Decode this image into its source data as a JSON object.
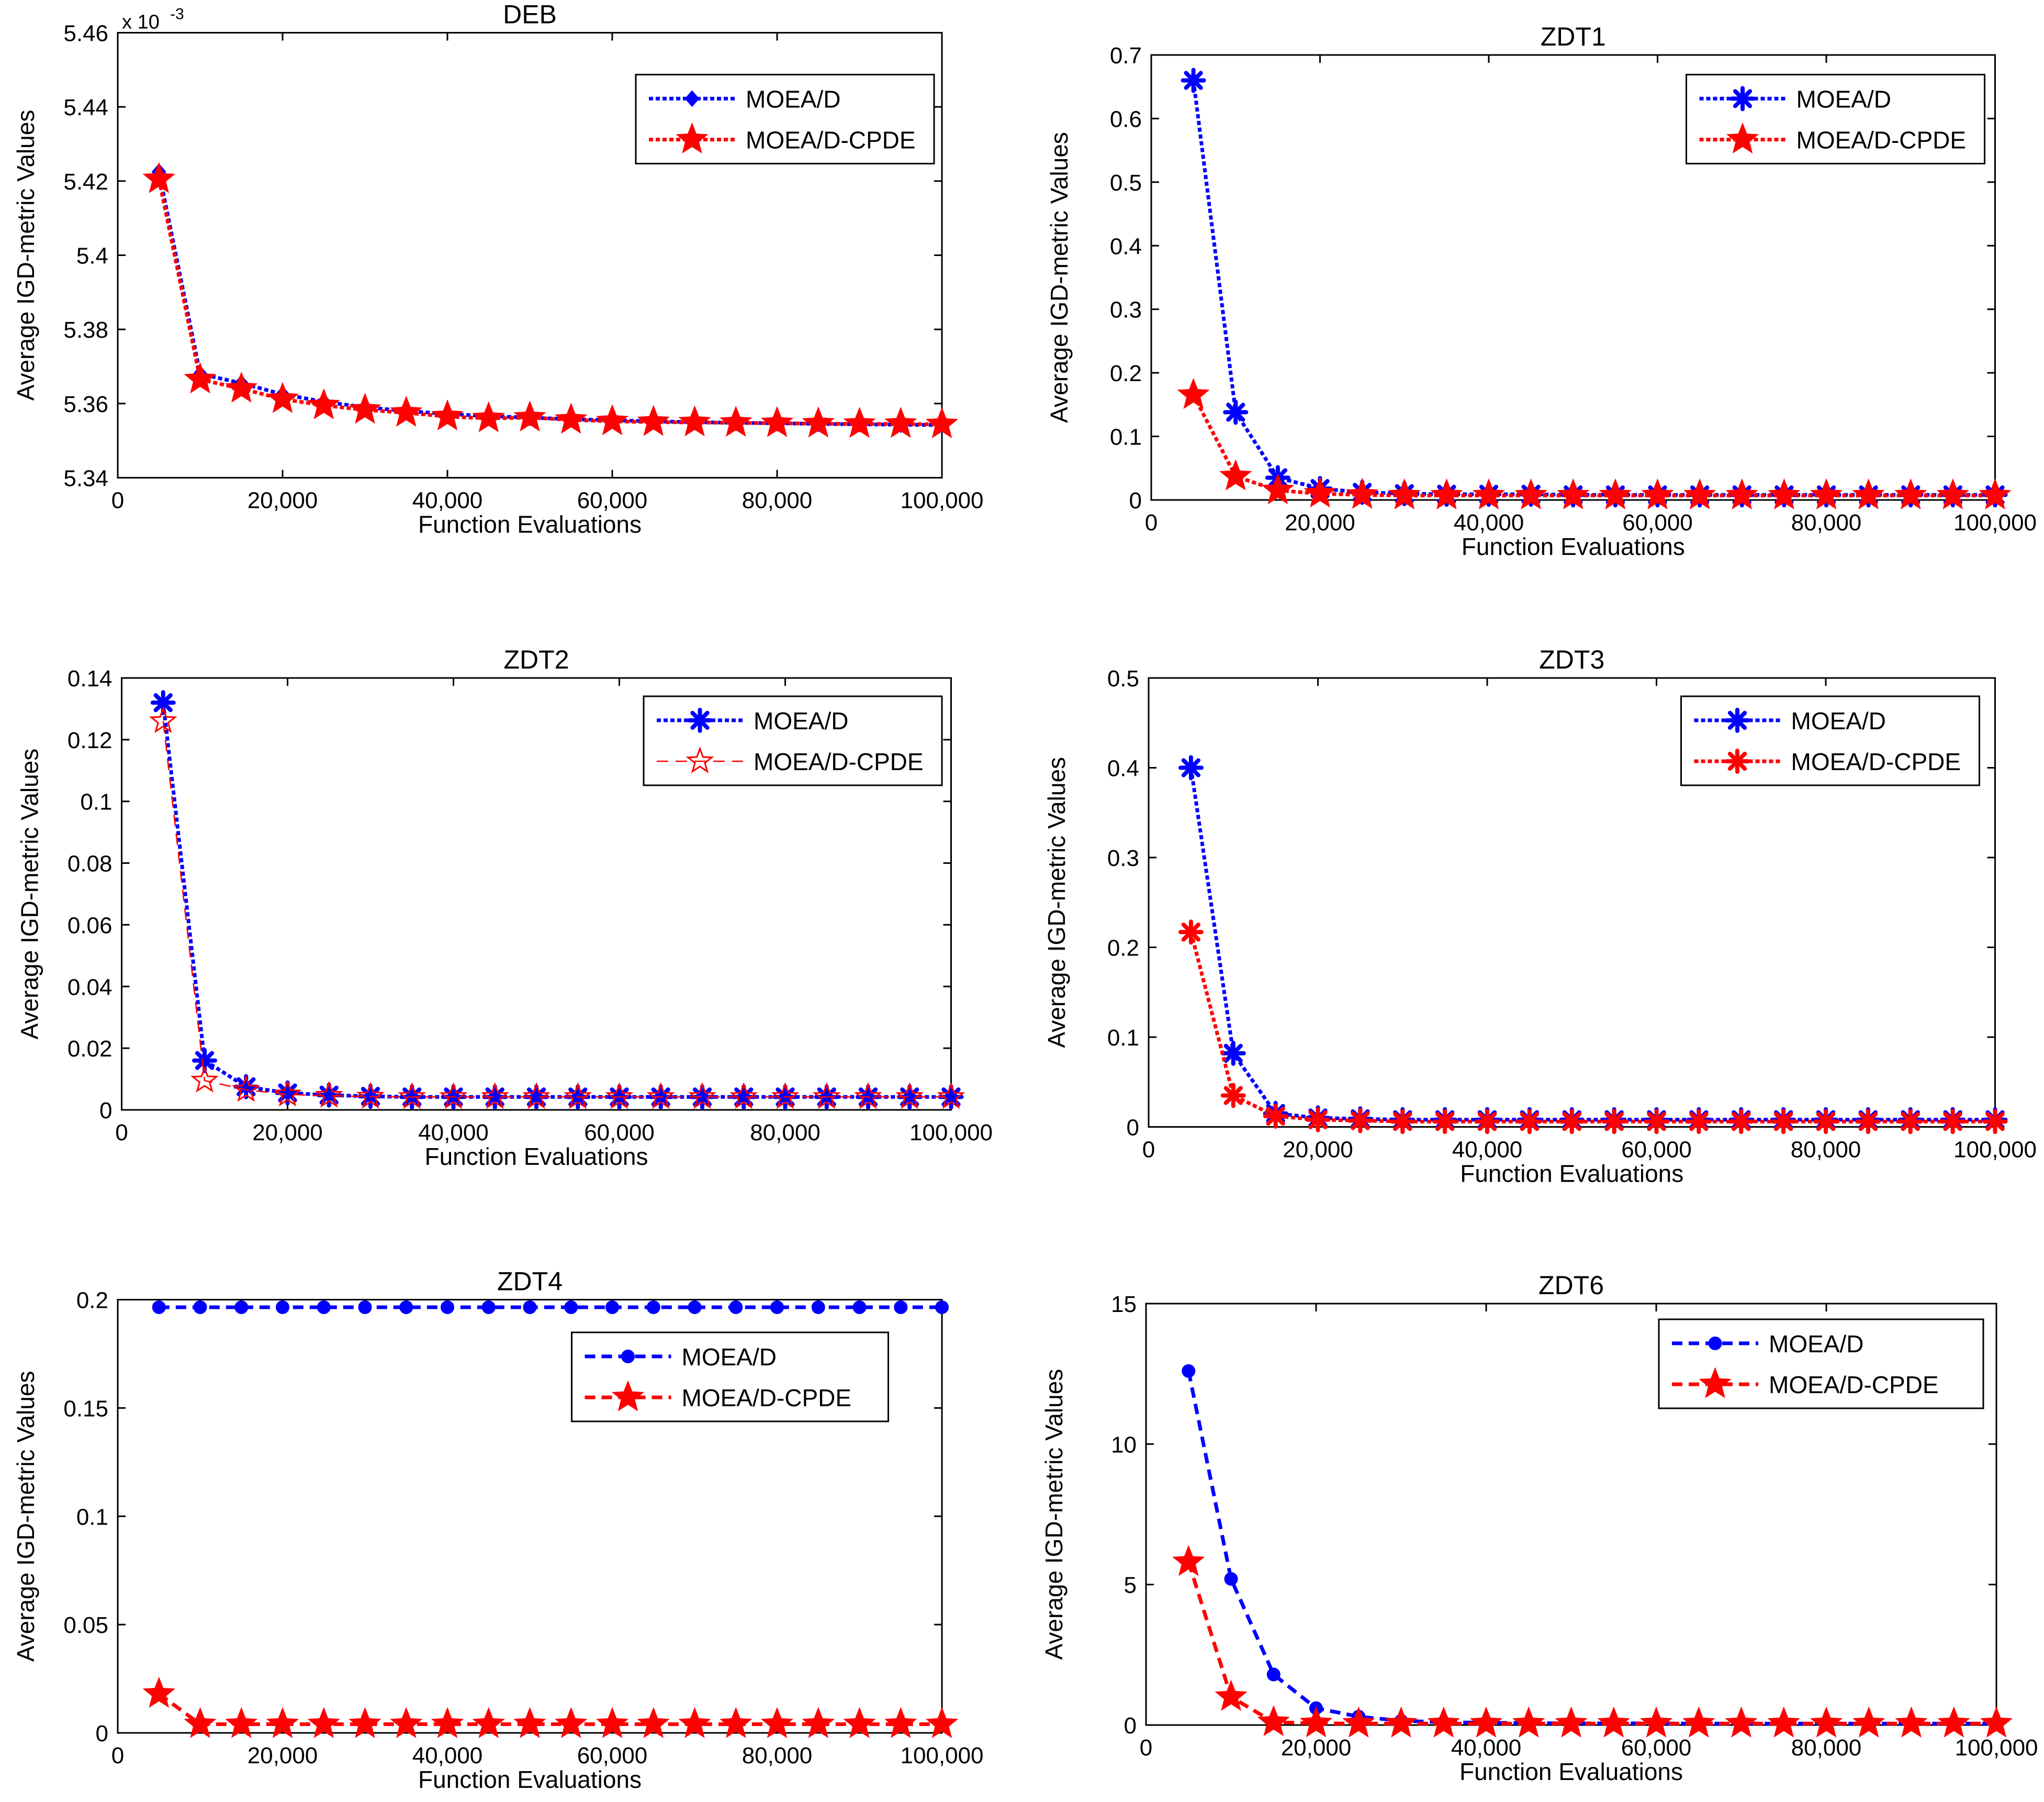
{
  "figure": {
    "x_ticks": [
      "0",
      "20,000",
      "40,000",
      "60,000",
      "80,000",
      "100,000"
    ],
    "xlabel": "Function Evaluations",
    "ylabel": "Average IGD-metric Values",
    "series_colors": {
      "MOEA/D": "#0000ff",
      "MOEA/D-CPDE": "#ff0000"
    }
  },
  "chart_data": [
    {
      "type": "line",
      "title": "DEB",
      "xlabel": "Function Evaluations",
      "ylabel": "Average IGD-metric Values",
      "exponent_label": "x 10-3",
      "exp_base": "x 10",
      "exp_power": "-3",
      "xlim": [
        0,
        100000
      ],
      "ylim": [
        5.34,
        5.46
      ],
      "y_ticks": [
        5.34,
        5.36,
        5.38,
        5.4,
        5.42,
        5.44,
        5.46
      ],
      "y_tick_labels": [
        "5.34",
        "5.36",
        "5.38",
        "5.4",
        "5.42",
        "5.44",
        "5.46"
      ],
      "legend": {
        "position": "top-right",
        "entries": [
          "MOEA/D",
          "MOEA/D-CPDE"
        ]
      },
      "series": [
        {
          "name": "MOEA/D",
          "color": "#0000ff",
          "line": "dotted",
          "marker": "diamond",
          "x": [
            5000,
            10000,
            15000,
            20000,
            25000,
            30000,
            35000,
            40000,
            45000,
            50000,
            55000,
            60000,
            65000,
            70000,
            75000,
            80000,
            85000,
            90000,
            95000,
            100000
          ],
          "values": [
            5.4225,
            5.368,
            5.3655,
            5.3625,
            5.3605,
            5.359,
            5.358,
            5.3572,
            5.3566,
            5.3562,
            5.3558,
            5.3555,
            5.3552,
            5.355,
            5.3548,
            5.3547,
            5.3545,
            5.3544,
            5.3543,
            5.3542
          ]
        },
        {
          "name": "MOEA/D-CPDE",
          "color": "#ff0000",
          "line": "dotted",
          "marker": "star",
          "x": [
            5000,
            10000,
            15000,
            20000,
            25000,
            30000,
            35000,
            40000,
            45000,
            50000,
            55000,
            60000,
            65000,
            70000,
            75000,
            80000,
            85000,
            90000,
            95000,
            100000
          ],
          "values": [
            5.4205,
            5.3665,
            5.364,
            5.3612,
            5.3595,
            5.3583,
            5.3575,
            5.3565,
            5.356,
            5.3562,
            5.3556,
            5.3552,
            5.355,
            5.3549,
            5.3548,
            5.3547,
            5.3546,
            5.3545,
            5.3545,
            5.3544
          ]
        }
      ]
    },
    {
      "type": "line",
      "title": "ZDT1",
      "xlabel": "Function Evaluations",
      "ylabel": "Average IGD-metric Values",
      "xlim": [
        0,
        100000
      ],
      "ylim": [
        0,
        0.7
      ],
      "y_ticks": [
        0,
        0.1,
        0.2,
        0.3,
        0.4,
        0.5,
        0.6,
        0.7
      ],
      "y_tick_labels": [
        "0",
        "0.1",
        "0.2",
        "0.3",
        "0.4",
        "0.5",
        "0.6",
        "0.7"
      ],
      "legend": {
        "position": "top-right",
        "entries": [
          "MOEA/D",
          "MOEA/D-CPDE"
        ]
      },
      "series": [
        {
          "name": "MOEA/D",
          "color": "#0000ff",
          "line": "dotted",
          "marker": "asterisk",
          "x": [
            5000,
            10000,
            15000,
            20000,
            25000,
            30000,
            35000,
            40000,
            45000,
            50000,
            55000,
            60000,
            65000,
            70000,
            75000,
            80000,
            85000,
            90000,
            95000,
            100000
          ],
          "values": [
            0.66,
            0.138,
            0.035,
            0.018,
            0.012,
            0.01,
            0.009,
            0.009,
            0.009,
            0.008,
            0.008,
            0.008,
            0.008,
            0.008,
            0.008,
            0.008,
            0.008,
            0.008,
            0.008,
            0.008
          ]
        },
        {
          "name": "MOEA/D-CPDE",
          "color": "#ff0000",
          "line": "dotted",
          "marker": "star",
          "x": [
            5000,
            10000,
            15000,
            20000,
            25000,
            30000,
            35000,
            40000,
            45000,
            50000,
            55000,
            60000,
            65000,
            70000,
            75000,
            80000,
            85000,
            90000,
            95000,
            100000
          ],
          "values": [
            0.165,
            0.037,
            0.015,
            0.01,
            0.008,
            0.007,
            0.007,
            0.007,
            0.007,
            0.007,
            0.007,
            0.007,
            0.007,
            0.007,
            0.007,
            0.007,
            0.007,
            0.007,
            0.007,
            0.007
          ]
        }
      ]
    },
    {
      "type": "line",
      "title": "ZDT2",
      "xlabel": "Function Evaluations",
      "ylabel": "Average IGD-metric Values",
      "xlim": [
        0,
        100000
      ],
      "ylim": [
        0,
        0.14
      ],
      "y_ticks": [
        0,
        0.02,
        0.04,
        0.06,
        0.08,
        0.1,
        0.12,
        0.14
      ],
      "y_tick_labels": [
        "0",
        "0.02",
        "0.04",
        "0.06",
        "0.08",
        "0.1",
        "0.12",
        "0.14"
      ],
      "legend": {
        "position": "top-right",
        "entries": [
          "MOEA/D",
          "MOEA/D-CPDE"
        ]
      },
      "series": [
        {
          "name": "MOEA/D",
          "color": "#0000ff",
          "line": "dotted",
          "marker": "asterisk",
          "x": [
            5000,
            10000,
            15000,
            20000,
            25000,
            30000,
            35000,
            40000,
            45000,
            50000,
            55000,
            60000,
            65000,
            70000,
            75000,
            80000,
            85000,
            90000,
            95000,
            100000
          ],
          "values": [
            0.132,
            0.016,
            0.0075,
            0.0055,
            0.0048,
            0.0044,
            0.0042,
            0.0042,
            0.0042,
            0.0042,
            0.0042,
            0.0042,
            0.0042,
            0.0042,
            0.0042,
            0.0042,
            0.0042,
            0.0042,
            0.0042,
            0.0042
          ]
        },
        {
          "name": "MOEA/D-CPDE",
          "color": "#ff0000",
          "line": "dashed-thin",
          "marker": "star-open",
          "x": [
            5000,
            10000,
            15000,
            20000,
            25000,
            30000,
            35000,
            40000,
            45000,
            50000,
            55000,
            60000,
            65000,
            70000,
            75000,
            80000,
            85000,
            90000,
            95000,
            100000
          ],
          "values": [
            0.126,
            0.0095,
            0.0065,
            0.005,
            0.0046,
            0.0043,
            0.0042,
            0.0042,
            0.0042,
            0.0042,
            0.0042,
            0.0042,
            0.0042,
            0.0042,
            0.0042,
            0.0042,
            0.0042,
            0.0042,
            0.0042,
            0.0042
          ]
        }
      ]
    },
    {
      "type": "line",
      "title": "ZDT3",
      "xlabel": "Function Evaluations",
      "ylabel": "Average IGD-metric Values",
      "xlim": [
        0,
        100000
      ],
      "ylim": [
        0,
        0.5
      ],
      "y_ticks": [
        0,
        0.1,
        0.2,
        0.3,
        0.4,
        0.5
      ],
      "y_tick_labels": [
        "0",
        "0.1",
        "0.2",
        "0.3",
        "0.4",
        "0.5"
      ],
      "legend": {
        "position": "top-right",
        "entries": [
          "MOEA/D",
          "MOEA/D-CPDE"
        ]
      },
      "series": [
        {
          "name": "MOEA/D",
          "color": "#0000ff",
          "line": "dotted",
          "marker": "asterisk",
          "x": [
            5000,
            10000,
            15000,
            20000,
            25000,
            30000,
            35000,
            40000,
            45000,
            50000,
            55000,
            60000,
            65000,
            70000,
            75000,
            80000,
            85000,
            90000,
            95000,
            100000
          ],
          "values": [
            0.4,
            0.082,
            0.015,
            0.01,
            0.009,
            0.008,
            0.008,
            0.008,
            0.008,
            0.008,
            0.008,
            0.008,
            0.008,
            0.008,
            0.008,
            0.008,
            0.008,
            0.008,
            0.008,
            0.008
          ]
        },
        {
          "name": "MOEA/D-CPDE",
          "color": "#ff0000",
          "line": "dotted",
          "marker": "asterisk",
          "x": [
            5000,
            10000,
            15000,
            20000,
            25000,
            30000,
            35000,
            40000,
            45000,
            50000,
            55000,
            60000,
            65000,
            70000,
            75000,
            80000,
            85000,
            90000,
            95000,
            100000
          ],
          "values": [
            0.217,
            0.035,
            0.012,
            0.008,
            0.007,
            0.006,
            0.006,
            0.006,
            0.006,
            0.006,
            0.006,
            0.006,
            0.006,
            0.006,
            0.006,
            0.006,
            0.006,
            0.006,
            0.006,
            0.006
          ]
        }
      ]
    },
    {
      "type": "line",
      "title": "ZDT4",
      "xlabel": "Function Evaluations",
      "ylabel": "Average IGD-metric Values",
      "xlim": [
        0,
        100000
      ],
      "ylim": [
        0,
        0.2
      ],
      "y_ticks": [
        0,
        0.05,
        0.1,
        0.15,
        0.2
      ],
      "y_tick_labels": [
        "0",
        "0.05",
        "0.1",
        "0.15",
        "0.2"
      ],
      "legend": {
        "position": "top-right",
        "entries": [
          "MOEA/D",
          "MOEA/D-CPDE"
        ]
      },
      "series": [
        {
          "name": "MOEA/D",
          "color": "#0000ff",
          "line": "dashed",
          "marker": "circle",
          "x": [
            5000,
            10000,
            15000,
            20000,
            25000,
            30000,
            35000,
            40000,
            45000,
            50000,
            55000,
            60000,
            65000,
            70000,
            75000,
            80000,
            85000,
            90000,
            95000,
            100000
          ],
          "values": [
            0.1965,
            0.1965,
            0.1965,
            0.1965,
            0.1965,
            0.1965,
            0.1965,
            0.1965,
            0.1965,
            0.1965,
            0.1965,
            0.1965,
            0.1965,
            0.1965,
            0.1965,
            0.1965,
            0.1965,
            0.1965,
            0.1965,
            0.1965
          ]
        },
        {
          "name": "MOEA/D-CPDE",
          "color": "#ff0000",
          "line": "dashed",
          "marker": "star",
          "x": [
            5000,
            10000,
            15000,
            20000,
            25000,
            30000,
            35000,
            40000,
            45000,
            50000,
            55000,
            60000,
            65000,
            70000,
            75000,
            80000,
            85000,
            90000,
            95000,
            100000
          ],
          "values": [
            0.018,
            0.004,
            0.004,
            0.004,
            0.004,
            0.004,
            0.004,
            0.004,
            0.004,
            0.004,
            0.004,
            0.004,
            0.004,
            0.004,
            0.004,
            0.004,
            0.004,
            0.004,
            0.004,
            0.004
          ]
        }
      ]
    },
    {
      "type": "line",
      "title": "ZDT6",
      "xlabel": "Function Evaluations",
      "ylabel": "Average IGD-metric Values",
      "xlim": [
        0,
        100000
      ],
      "ylim": [
        0,
        15
      ],
      "y_ticks": [
        0,
        5,
        10,
        15
      ],
      "y_tick_labels": [
        "0",
        "5",
        "10",
        "15"
      ],
      "legend": {
        "position": "top-right",
        "entries": [
          "MOEA/D",
          "MOEA/D-CPDE"
        ]
      },
      "series": [
        {
          "name": "MOEA/D",
          "color": "#0000ff",
          "line": "dashed",
          "marker": "circle",
          "x": [
            5000,
            10000,
            15000,
            20000,
            25000,
            30000,
            35000,
            40000,
            45000,
            50000,
            55000,
            60000,
            65000,
            70000,
            75000,
            80000,
            85000,
            90000,
            95000,
            100000
          ],
          "values": [
            12.6,
            5.2,
            1.8,
            0.6,
            0.3,
            0.15,
            0.1,
            0.08,
            0.07,
            0.06,
            0.06,
            0.06,
            0.05,
            0.05,
            0.05,
            0.05,
            0.05,
            0.05,
            0.05,
            0.05
          ]
        },
        {
          "name": "MOEA/D-CPDE",
          "color": "#ff0000",
          "line": "dashed",
          "marker": "star",
          "x": [
            5000,
            10000,
            15000,
            20000,
            25000,
            30000,
            35000,
            40000,
            45000,
            50000,
            55000,
            60000,
            65000,
            70000,
            75000,
            80000,
            85000,
            90000,
            95000,
            100000
          ],
          "values": [
            5.8,
            1.0,
            0.1,
            0.06,
            0.05,
            0.05,
            0.05,
            0.05,
            0.05,
            0.05,
            0.05,
            0.05,
            0.05,
            0.05,
            0.05,
            0.05,
            0.05,
            0.05,
            0.05,
            0.05
          ]
        }
      ]
    }
  ]
}
